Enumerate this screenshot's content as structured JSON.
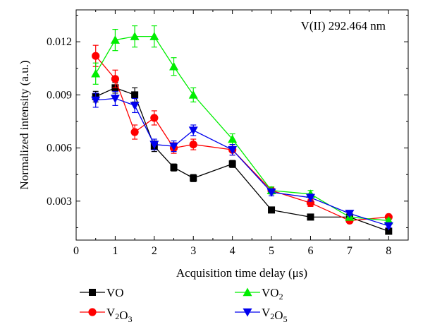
{
  "chart_data": {
    "type": "line",
    "annotation": "V(II) 292.464 nm",
    "xlabel": "Acquisition time delay (μs)",
    "ylabel": "Normalized intensity (a.u.)",
    "xlim": [
      0,
      8.5
    ],
    "ylim": [
      0.0008,
      0.0138
    ],
    "x_ticks": [
      0,
      1,
      2,
      3,
      4,
      5,
      6,
      7,
      8
    ],
    "y_ticks": [
      0.003,
      0.006,
      0.009,
      0.012
    ],
    "x_tick_labels": [
      "0",
      "1",
      "2",
      "3",
      "4",
      "5",
      "6",
      "7",
      "8"
    ],
    "y_tick_labels": [
      "0.003",
      "0.006",
      "0.009",
      "0.012"
    ],
    "grid": false,
    "legend_position": "bottom",
    "series": [
      {
        "name": "VO",
        "color": "#000000",
        "marker": "square",
        "x": [
          0.5,
          1,
          1.5,
          2,
          2.5,
          3,
          4,
          5,
          6,
          7,
          8
        ],
        "y": [
          0.0089,
          0.0094,
          0.009,
          0.0061,
          0.0049,
          0.0043,
          0.0051,
          0.0025,
          0.0021,
          0.0021,
          0.0013
        ],
        "err": [
          0.0003,
          0.0003,
          0.0004,
          0.0003,
          0.0002,
          0.0002,
          0.0002,
          0.0001,
          0.0001,
          0.0001,
          0.0001
        ]
      },
      {
        "name": "V2O3",
        "color": "#ff0000",
        "marker": "circle",
        "x": [
          0.5,
          1,
          1.5,
          2,
          2.5,
          3,
          4,
          5,
          6,
          7,
          8
        ],
        "y": [
          0.0112,
          0.0099,
          0.0069,
          0.0077,
          0.006,
          0.0062,
          0.0059,
          0.0036,
          0.0029,
          0.0019,
          0.0021
        ],
        "err": [
          0.0006,
          0.0005,
          0.0004,
          0.0004,
          0.0003,
          0.0003,
          0.0003,
          0.0002,
          0.0002,
          0.0001,
          0.0001
        ]
      },
      {
        "name": "VO2",
        "color": "#00ee00",
        "marker": "triangle-up",
        "x": [
          0.5,
          1,
          1.5,
          2,
          2.5,
          3,
          4,
          5,
          6,
          7,
          8
        ],
        "y": [
          0.0102,
          0.0121,
          0.0123,
          0.0123,
          0.0106,
          0.009,
          0.0065,
          0.0036,
          0.0034,
          0.0021,
          0.0019
        ],
        "err": [
          0.0006,
          0.0006,
          0.0006,
          0.0006,
          0.0005,
          0.0004,
          0.0003,
          0.0002,
          0.0002,
          0.0001,
          0.0001
        ]
      },
      {
        "name": "V2O5",
        "color": "#0000ee",
        "marker": "triangle-down",
        "x": [
          0.5,
          1,
          1.5,
          2,
          2.5,
          3,
          4,
          5,
          6,
          7,
          8
        ],
        "y": [
          0.0087,
          0.0088,
          0.0084,
          0.0062,
          0.0061,
          0.007,
          0.0059,
          0.0035,
          0.0032,
          0.0023,
          0.0016
        ],
        "err": [
          0.0004,
          0.0004,
          0.0004,
          0.0003,
          0.0003,
          0.0003,
          0.0003,
          0.0002,
          0.0002,
          0.0001,
          0.0001
        ]
      }
    ]
  }
}
